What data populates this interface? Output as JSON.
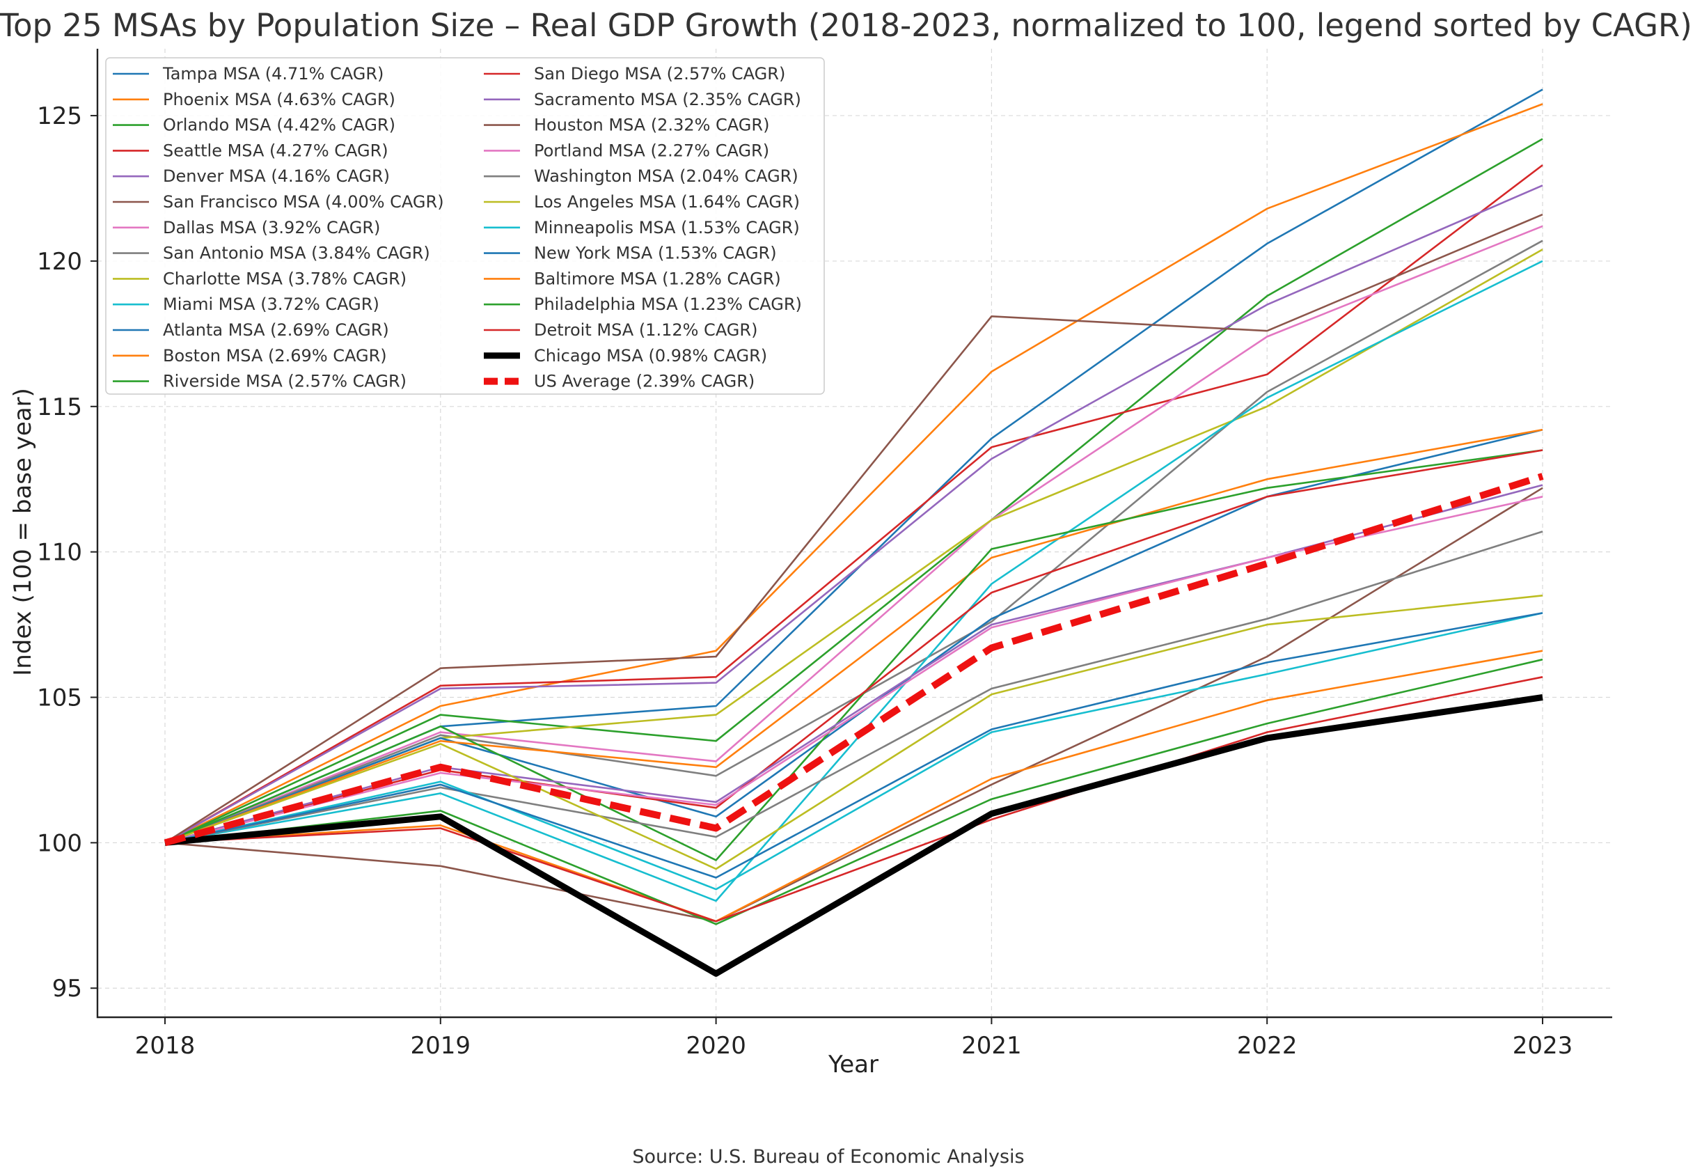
{
  "chart_data": {
    "type": "line",
    "title": "Top 25 MSAs by Population Size – Real GDP Growth (2018-2023, normalized to 100, legend sorted by CAGR)",
    "xlabel": "Year",
    "ylabel": "Index (100 = base year)",
    "x": [
      2018,
      2019,
      2020,
      2021,
      2022,
      2023
    ],
    "x_tick_labels": [
      "2018",
      "2019",
      "2020",
      "2021",
      "2022",
      "2023"
    ],
    "ylim": [
      94,
      127.3
    ],
    "y_ticks": [
      95,
      100,
      105,
      110,
      115,
      120,
      125
    ],
    "y_tick_labels": [
      "95",
      "100",
      "105",
      "110",
      "115",
      "120",
      "125"
    ],
    "grid": true,
    "legend_position": "top-left",
    "source": "Source: U.S. Bureau of Economic Analysis",
    "series": [
      {
        "name": "Tampa MSA",
        "label": "Tampa MSA (4.71% CAGR)",
        "color": "#1f77b4",
        "values": [
          100,
          104.0,
          104.7,
          113.9,
          120.6,
          125.9
        ]
      },
      {
        "name": "Phoenix MSA",
        "label": "Phoenix MSA (4.63% CAGR)",
        "color": "#ff7f0e",
        "values": [
          100,
          104.7,
          106.6,
          116.2,
          121.8,
          125.4
        ]
      },
      {
        "name": "Orlando MSA",
        "label": "Orlando MSA (4.42% CAGR)",
        "color": "#2ca02c",
        "values": [
          100,
          104.4,
          103.5,
          111.1,
          118.8,
          124.2
        ]
      },
      {
        "name": "Seattle MSA",
        "label": "Seattle MSA (4.27% CAGR)",
        "color": "#d62728",
        "values": [
          100,
          105.4,
          105.7,
          113.6,
          116.1,
          123.3
        ]
      },
      {
        "name": "Denver MSA",
        "label": "Denver MSA (4.16% CAGR)",
        "color": "#9467bd",
        "values": [
          100,
          105.3,
          105.5,
          113.2,
          118.5,
          122.6
        ]
      },
      {
        "name": "San Francisco MSA",
        "label": "San Francisco MSA (4.00% CAGR)",
        "color": "#8c564b",
        "values": [
          100,
          106.0,
          106.4,
          118.1,
          117.6,
          121.6
        ]
      },
      {
        "name": "Dallas MSA",
        "label": "Dallas MSA (3.92% CAGR)",
        "color": "#e377c2",
        "values": [
          100,
          103.8,
          102.8,
          111.1,
          117.4,
          121.2
        ]
      },
      {
        "name": "San Antonio MSA",
        "label": "San Antonio MSA (3.84% CAGR)",
        "color": "#7f7f7f",
        "values": [
          100,
          103.7,
          102.3,
          107.6,
          115.5,
          120.7
        ]
      },
      {
        "name": "Charlotte MSA",
        "label": "Charlotte MSA (3.78% CAGR)",
        "color": "#bcbd22",
        "values": [
          100,
          103.6,
          104.4,
          111.1,
          115.0,
          120.4
        ]
      },
      {
        "name": "Miami MSA",
        "label": "Miami MSA (3.72% CAGR)",
        "color": "#17becf",
        "values": [
          100,
          101.7,
          98.0,
          108.9,
          115.3,
          120.0
        ]
      },
      {
        "name": "Atlanta MSA",
        "label": "Atlanta MSA (2.69% CAGR)",
        "color": "#1f77b4",
        "values": [
          100,
          103.6,
          100.9,
          107.7,
          111.9,
          114.2
        ]
      },
      {
        "name": "Boston MSA",
        "label": "Boston MSA (2.69% CAGR)",
        "color": "#ff7f0e",
        "values": [
          100,
          103.5,
          102.6,
          109.8,
          112.5,
          114.2
        ]
      },
      {
        "name": "Riverside MSA",
        "label": "Riverside MSA (2.57% CAGR)",
        "color": "#2ca02c",
        "values": [
          100,
          104.0,
          99.4,
          110.1,
          112.2,
          113.5
        ]
      },
      {
        "name": "San Diego MSA",
        "label": "San Diego MSA (2.57% CAGR)",
        "color": "#d62728",
        "values": [
          100,
          102.5,
          101.2,
          108.6,
          111.9,
          113.5
        ]
      },
      {
        "name": "Sacramento MSA",
        "label": "Sacramento MSA (2.35% CAGR)",
        "color": "#9467bd",
        "values": [
          100,
          102.6,
          101.4,
          107.5,
          109.8,
          112.3
        ]
      },
      {
        "name": "Houston MSA",
        "label": "Houston MSA (2.32% CAGR)",
        "color": "#8c564b",
        "values": [
          100,
          99.2,
          97.3,
          102.0,
          106.4,
          112.2
        ]
      },
      {
        "name": "Portland MSA",
        "label": "Portland MSA (2.27% CAGR)",
        "color": "#e377c2",
        "values": [
          100,
          102.4,
          101.3,
          107.4,
          109.8,
          111.9
        ]
      },
      {
        "name": "Washington MSA",
        "label": "Washington MSA (2.04% CAGR)",
        "color": "#7f7f7f",
        "values": [
          100,
          101.9,
          100.2,
          105.3,
          107.7,
          110.7
        ]
      },
      {
        "name": "Los Angeles MSA",
        "label": "Los Angeles MSA (1.64% CAGR)",
        "color": "#bcbd22",
        "values": [
          100,
          103.4,
          99.1,
          105.1,
          107.5,
          108.5
        ]
      },
      {
        "name": "Minneapolis MSA",
        "label": "Minneapolis MSA (1.53% CAGR)",
        "color": "#17becf",
        "values": [
          100,
          102.1,
          98.4,
          103.8,
          105.8,
          107.9
        ]
      },
      {
        "name": "New York MSA",
        "label": "New York MSA (1.53% CAGR)",
        "color": "#1f77b4",
        "values": [
          100,
          102.0,
          98.8,
          103.9,
          106.2,
          107.9
        ]
      },
      {
        "name": "Baltimore MSA",
        "label": "Baltimore MSA (1.28% CAGR)",
        "color": "#ff7f0e",
        "values": [
          100,
          100.6,
          97.3,
          102.2,
          104.9,
          106.6
        ]
      },
      {
        "name": "Philadelphia MSA",
        "label": "Philadelphia MSA (1.23% CAGR)",
        "color": "#2ca02c",
        "values": [
          100,
          101.1,
          97.2,
          101.5,
          104.1,
          106.3
        ]
      },
      {
        "name": "Detroit MSA",
        "label": "Detroit MSA (1.12% CAGR)",
        "color": "#d62728",
        "values": [
          100,
          100.5,
          97.3,
          100.8,
          103.8,
          105.7
        ]
      },
      {
        "name": "Chicago MSA",
        "label": "Chicago MSA (0.98% CAGR)",
        "color": "#000000",
        "style": "bold",
        "values": [
          100,
          100.9,
          95.5,
          101.0,
          103.6,
          105.0
        ]
      },
      {
        "name": "US Average",
        "label": "US Average (2.39% CAGR)",
        "color": "#ee1111",
        "style": "dashed",
        "values": [
          100,
          102.6,
          100.5,
          106.7,
          109.6,
          112.6
        ]
      }
    ]
  }
}
